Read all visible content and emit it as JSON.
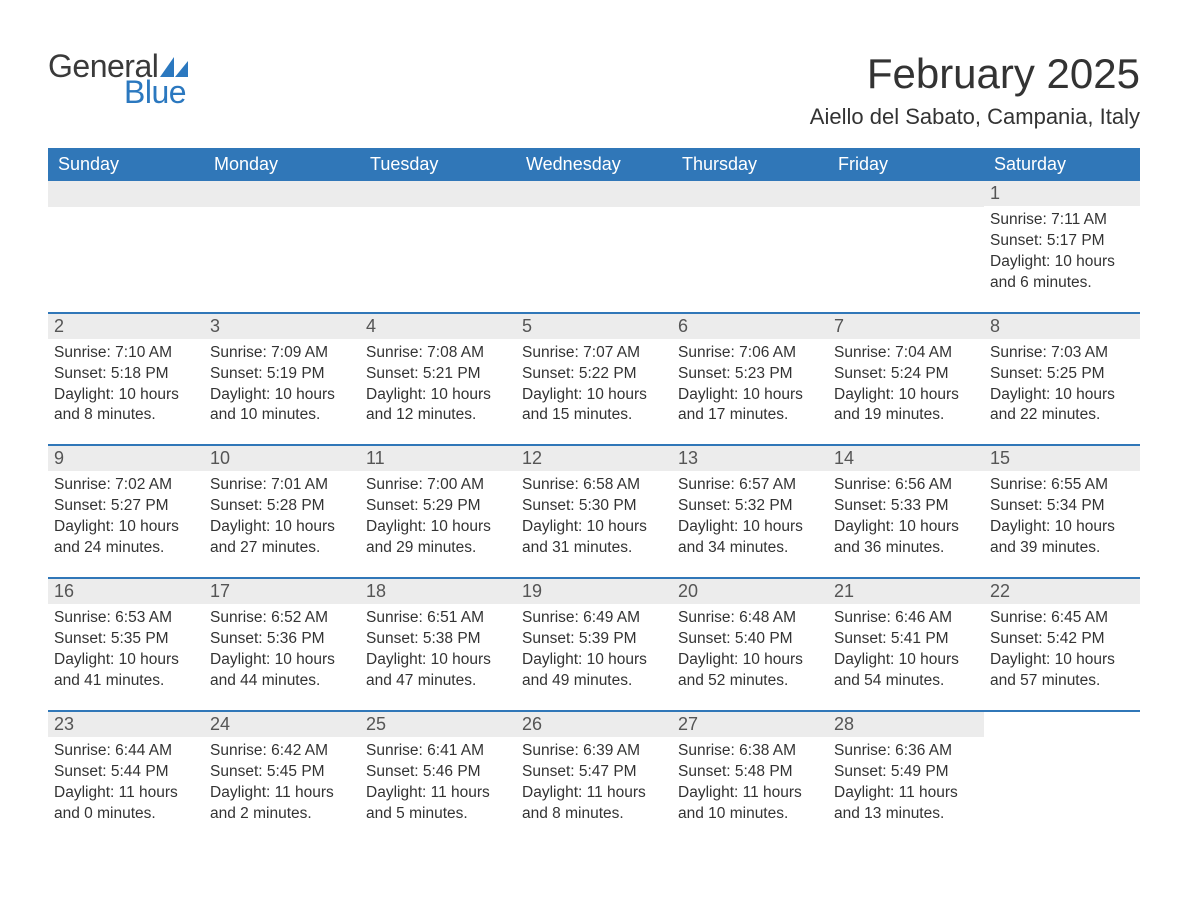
{
  "logo": {
    "text_general": "General",
    "text_blue": "Blue",
    "color_dark": "#3a3a3a",
    "color_blue": "#2b78bf"
  },
  "header": {
    "title": "February 2025",
    "location": "Aiello del Sabato, Campania, Italy",
    "title_fontsize": 42,
    "location_fontsize": 22
  },
  "theme": {
    "header_bg": "#3077b8",
    "header_fg": "#ffffff",
    "daynum_bg": "#ececec",
    "daynum_fg": "#555555",
    "text_color": "#333333",
    "row_border_color": "#3077b8"
  },
  "columns": [
    "Sunday",
    "Monday",
    "Tuesday",
    "Wednesday",
    "Thursday",
    "Friday",
    "Saturday"
  ],
  "labels": {
    "sunrise": "Sunrise:",
    "sunset": "Sunset:",
    "daylight": "Daylight:"
  },
  "weeks": [
    [
      null,
      null,
      null,
      null,
      null,
      null,
      {
        "n": "1",
        "sunrise": "7:11 AM",
        "sunset": "5:17 PM",
        "daylight": "10 hours and 6 minutes."
      }
    ],
    [
      {
        "n": "2",
        "sunrise": "7:10 AM",
        "sunset": "5:18 PM",
        "daylight": "10 hours and 8 minutes."
      },
      {
        "n": "3",
        "sunrise": "7:09 AM",
        "sunset": "5:19 PM",
        "daylight": "10 hours and 10 minutes."
      },
      {
        "n": "4",
        "sunrise": "7:08 AM",
        "sunset": "5:21 PM",
        "daylight": "10 hours and 12 minutes."
      },
      {
        "n": "5",
        "sunrise": "7:07 AM",
        "sunset": "5:22 PM",
        "daylight": "10 hours and 15 minutes."
      },
      {
        "n": "6",
        "sunrise": "7:06 AM",
        "sunset": "5:23 PM",
        "daylight": "10 hours and 17 minutes."
      },
      {
        "n": "7",
        "sunrise": "7:04 AM",
        "sunset": "5:24 PM",
        "daylight": "10 hours and 19 minutes."
      },
      {
        "n": "8",
        "sunrise": "7:03 AM",
        "sunset": "5:25 PM",
        "daylight": "10 hours and 22 minutes."
      }
    ],
    [
      {
        "n": "9",
        "sunrise": "7:02 AM",
        "sunset": "5:27 PM",
        "daylight": "10 hours and 24 minutes."
      },
      {
        "n": "10",
        "sunrise": "7:01 AM",
        "sunset": "5:28 PM",
        "daylight": "10 hours and 27 minutes."
      },
      {
        "n": "11",
        "sunrise": "7:00 AM",
        "sunset": "5:29 PM",
        "daylight": "10 hours and 29 minutes."
      },
      {
        "n": "12",
        "sunrise": "6:58 AM",
        "sunset": "5:30 PM",
        "daylight": "10 hours and 31 minutes."
      },
      {
        "n": "13",
        "sunrise": "6:57 AM",
        "sunset": "5:32 PM",
        "daylight": "10 hours and 34 minutes."
      },
      {
        "n": "14",
        "sunrise": "6:56 AM",
        "sunset": "5:33 PM",
        "daylight": "10 hours and 36 minutes."
      },
      {
        "n": "15",
        "sunrise": "6:55 AM",
        "sunset": "5:34 PM",
        "daylight": "10 hours and 39 minutes."
      }
    ],
    [
      {
        "n": "16",
        "sunrise": "6:53 AM",
        "sunset": "5:35 PM",
        "daylight": "10 hours and 41 minutes."
      },
      {
        "n": "17",
        "sunrise": "6:52 AM",
        "sunset": "5:36 PM",
        "daylight": "10 hours and 44 minutes."
      },
      {
        "n": "18",
        "sunrise": "6:51 AM",
        "sunset": "5:38 PM",
        "daylight": "10 hours and 47 minutes."
      },
      {
        "n": "19",
        "sunrise": "6:49 AM",
        "sunset": "5:39 PM",
        "daylight": "10 hours and 49 minutes."
      },
      {
        "n": "20",
        "sunrise": "6:48 AM",
        "sunset": "5:40 PM",
        "daylight": "10 hours and 52 minutes."
      },
      {
        "n": "21",
        "sunrise": "6:46 AM",
        "sunset": "5:41 PM",
        "daylight": "10 hours and 54 minutes."
      },
      {
        "n": "22",
        "sunrise": "6:45 AM",
        "sunset": "5:42 PM",
        "daylight": "10 hours and 57 minutes."
      }
    ],
    [
      {
        "n": "23",
        "sunrise": "6:44 AM",
        "sunset": "5:44 PM",
        "daylight": "11 hours and 0 minutes."
      },
      {
        "n": "24",
        "sunrise": "6:42 AM",
        "sunset": "5:45 PM",
        "daylight": "11 hours and 2 minutes."
      },
      {
        "n": "25",
        "sunrise": "6:41 AM",
        "sunset": "5:46 PM",
        "daylight": "11 hours and 5 minutes."
      },
      {
        "n": "26",
        "sunrise": "6:39 AM",
        "sunset": "5:47 PM",
        "daylight": "11 hours and 8 minutes."
      },
      {
        "n": "27",
        "sunrise": "6:38 AM",
        "sunset": "5:48 PM",
        "daylight": "11 hours and 10 minutes."
      },
      {
        "n": "28",
        "sunrise": "6:36 AM",
        "sunset": "5:49 PM",
        "daylight": "11 hours and 13 minutes."
      },
      null
    ]
  ]
}
